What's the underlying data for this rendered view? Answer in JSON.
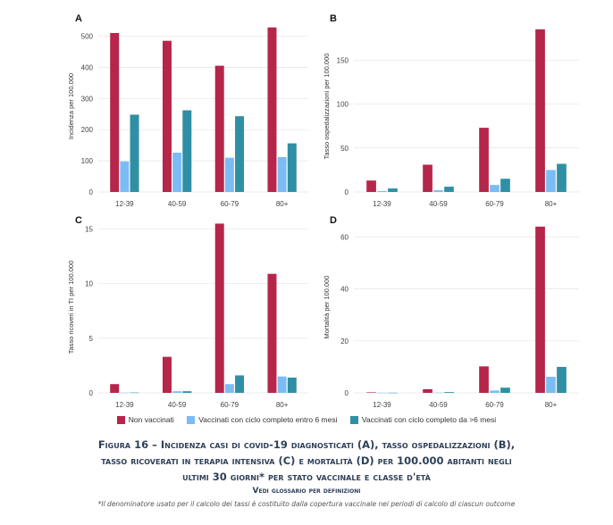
{
  "chart_data": [
    {
      "type": "bar",
      "panel": "A",
      "ylabel": "Incidenza per 100.000",
      "categories": [
        "12-39",
        "40-59",
        "60-79",
        "80+"
      ],
      "ylim": [
        0,
        550
      ],
      "yticks": [
        0,
        100,
        200,
        300,
        400,
        500
      ],
      "series": [
        {
          "name": "Non vaccinati",
          "values": [
            510,
            485,
            405,
            528
          ]
        },
        {
          "name": "Vaccinati con ciclo completo entro 6 mesi",
          "values": [
            98,
            126,
            110,
            112
          ]
        },
        {
          "name": "Vaccinati con ciclo completo da >6 mesi",
          "values": [
            248,
            262,
            243,
            156
          ]
        }
      ]
    },
    {
      "type": "bar",
      "panel": "B",
      "ylabel": "Tasso ospedalizzazioni per 100.000",
      "categories": [
        "12-39",
        "40-59",
        "60-79",
        "80+"
      ],
      "ylim": [
        0,
        195
      ],
      "yticks": [
        0,
        50,
        100,
        150
      ],
      "series": [
        {
          "name": "Non vaccinati",
          "values": [
            13,
            31,
            73,
            185
          ]
        },
        {
          "name": "Vaccinati con ciclo completo entro 6 mesi",
          "values": [
            1,
            2,
            8,
            25
          ]
        },
        {
          "name": "Vaccinati con ciclo completo da >6 mesi",
          "values": [
            4,
            6,
            15,
            32
          ]
        }
      ]
    },
    {
      "type": "bar",
      "panel": "C",
      "ylabel": "Tasso ricoveri in TI per 100.000",
      "categories": [
        "12-39",
        "40-59",
        "60-79",
        "80+"
      ],
      "ylim": [
        0,
        15.7
      ],
      "yticks": [
        0,
        5,
        10,
        15
      ],
      "series": [
        {
          "name": "Non vaccinati",
          "values": [
            0.8,
            3.3,
            15.5,
            10.9
          ]
        },
        {
          "name": "Vaccinati con ciclo completo entro 6 mesi",
          "values": [
            0.02,
            0.15,
            0.8,
            1.5
          ]
        },
        {
          "name": "Vaccinati con ciclo completo da >6 mesi",
          "values": [
            0.03,
            0.15,
            1.6,
            1.4
          ]
        }
      ]
    },
    {
      "type": "bar",
      "panel": "D",
      "ylabel": "Mortalità per 100.000",
      "categories": [
        "12-39",
        "40-59",
        "60-79",
        "80+"
      ],
      "ylim": [
        0,
        66
      ],
      "yticks": [
        0,
        20,
        40,
        60
      ],
      "series": [
        {
          "name": "Non vaccinati",
          "values": [
            0.2,
            1.4,
            10.2,
            64
          ]
        },
        {
          "name": "Vaccinati con ciclo completo entro 6 mesi",
          "values": [
            0.05,
            0.1,
            0.9,
            6.2
          ]
        },
        {
          "name": "Vaccinati con ciclo completo da >6 mesi",
          "values": [
            0.05,
            0.3,
            2,
            10
          ]
        }
      ]
    }
  ],
  "colors": [
    "#b5264a",
    "#7cbcf5",
    "#2f8fa5"
  ],
  "legend": [
    "Non vaccinati",
    "Vaccinati con ciclo completo entro 6 mesi",
    "Vaccinati con ciclo completo da >6 mesi"
  ],
  "caption": {
    "line1": "Figura 16 – Incidenza casi di covid-19 diagnosticati (A), tasso ospedalizzazioni (B),",
    "line2": "tasso ricoverati in terapia intensiva (C) e mortalità (D) per 100.000 abitanti negli",
    "line3": "ultimi 30 giorni* per stato vaccinale e classe d'età",
    "sub": "Vedi glossario per definizioni",
    "note": "*Il denominatore usato per il calcolo dei tassi è costituito dalla copertura vaccinale nei periodi di calcolo di ciascun outcome"
  }
}
